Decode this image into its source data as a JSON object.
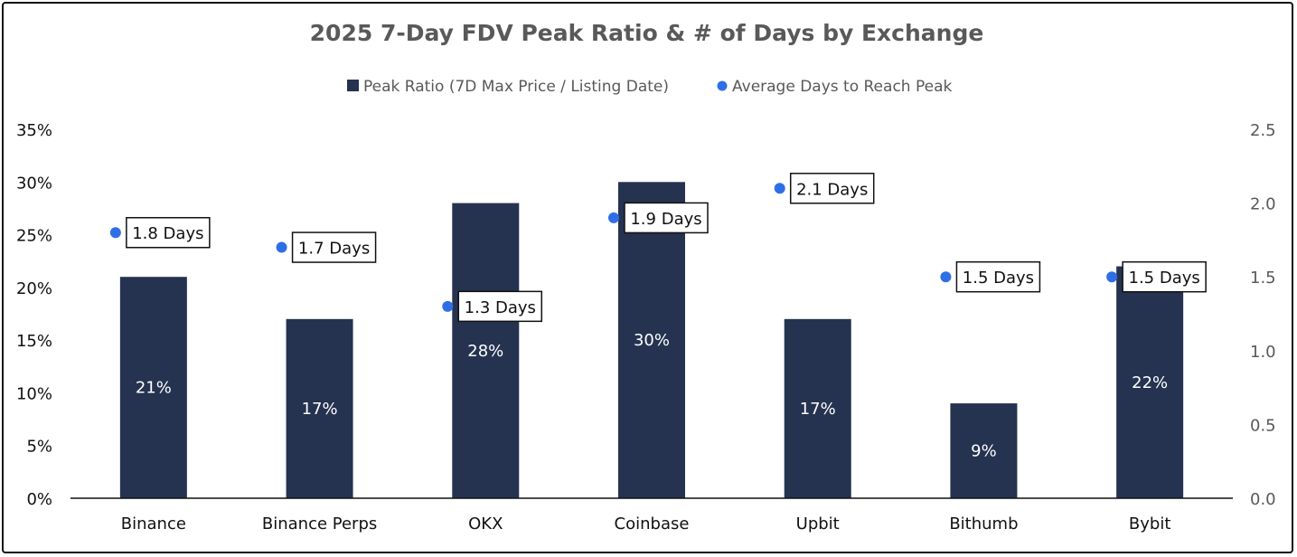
{
  "chart_data": {
    "type": "bar",
    "title": "2025 7-Day FDV Peak Ratio & # of Days by Exchange",
    "categories": [
      "Binance",
      "Binance Perps",
      "OKX",
      "Coinbase",
      "Upbit",
      "Bithumb",
      "Bybit"
    ],
    "series": [
      {
        "name": "Peak Ratio (7D Max Price / Listing Date)",
        "type": "bar",
        "axis": "left",
        "values": [
          21,
          17,
          28,
          30,
          17,
          9,
          22
        ],
        "labels": [
          "21%",
          "17%",
          "28%",
          "30%",
          "17%",
          "9%",
          "22%"
        ],
        "color": "#253350"
      },
      {
        "name": "Average Days to Reach Peak",
        "type": "scatter",
        "axis": "right",
        "values": [
          1.8,
          1.7,
          1.3,
          1.9,
          2.1,
          1.5,
          1.5
        ],
        "labels": [
          "1.8 Days",
          "1.7 Days",
          "1.3 Days",
          "1.9 Days",
          "2.1 Days",
          "1.5 Days",
          "1.5 Days"
        ],
        "color": "#2f6fe6"
      }
    ],
    "y_left": {
      "min": 0,
      "max": 35,
      "step": 5,
      "ticks": [
        "0%",
        "5%",
        "10%",
        "15%",
        "20%",
        "25%",
        "30%",
        "35%"
      ]
    },
    "y_right": {
      "min": 0,
      "max": 2.5,
      "step": 0.5,
      "ticks": [
        "0.0",
        "0.5",
        "1.0",
        "1.5",
        "2.0",
        "2.5"
      ]
    },
    "grid": false,
    "legend_position": "top-center"
  }
}
